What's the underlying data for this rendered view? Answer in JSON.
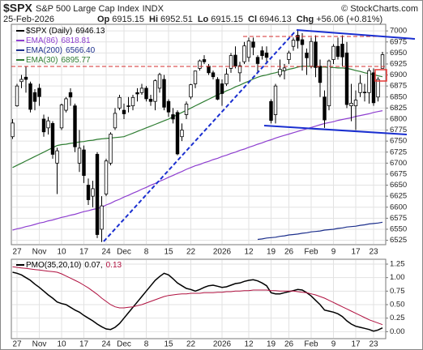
{
  "header": {
    "symbol": "$SPX",
    "name": "S&P 500 Large Cap Index",
    "exchange": "INDX",
    "date": "25-Feb-2026",
    "quote": [
      [
        "Op",
        "6915.15"
      ],
      [
        "Hi",
        "6952.51"
      ],
      [
        "Lo",
        "6915.15"
      ],
      [
        "Cl",
        "6946.13"
      ],
      [
        "Chg",
        "+56.06 (+0.81%)"
      ]
    ],
    "credit": "© StockCharts.com"
  },
  "chart_data": [
    {
      "type": "candlestick",
      "name": "$SPX (Daily)",
      "last": "6946.13",
      "color": "#000000",
      "grid": true,
      "categories": [
        null,
        "27",
        null,
        null,
        null,
        null,
        "Nov",
        null,
        null,
        null,
        null,
        "10",
        null,
        null,
        null,
        null,
        "17",
        null,
        null,
        null,
        null,
        "24",
        null,
        null,
        null,
        "Dec",
        null,
        null,
        null,
        null,
        "8",
        null,
        null,
        null,
        null,
        "15",
        null,
        null,
        null,
        null,
        "22",
        null,
        null,
        null,
        null,
        null,
        null,
        "2026",
        null,
        null,
        null,
        null,
        null,
        "12",
        null,
        null,
        null,
        null,
        "19",
        null,
        null,
        null,
        "26",
        null,
        null,
        null,
        null,
        "Feb",
        null,
        null,
        null,
        null,
        "9",
        null,
        null,
        null,
        null,
        "17",
        null,
        null,
        null,
        "23",
        null,
        null
      ],
      "open": [
        6760,
        6830,
        6885,
        6895,
        6880,
        6860,
        6870,
        6800,
        6780,
        6790,
        6700,
        6780,
        6820,
        6860,
        6830,
        6700,
        6730,
        6650,
        6625,
        6720,
        6550,
        6630,
        6700,
        6780,
        6825,
        6820,
        6830,
        6830,
        6860,
        6860,
        6870,
        6845,
        6840,
        6870,
        6890,
        6840,
        6810,
        6815,
        6760,
        6810,
        6850,
        6880,
        6915,
        6935,
        6920,
        6905,
        6890,
        6880,
        6880,
        6915,
        6945,
        6905,
        6930,
        6940,
        6975,
        6940,
        6955,
        6950,
        6840,
        6810,
        6900,
        6910,
        6935,
        6965,
        6990,
        6980,
        6950,
        6920,
        6975,
        6920,
        6850,
        6830,
        6935,
        6965,
        6970,
        6950,
        6830,
        6830,
        6860,
        6860,
        6860,
        6905,
        6850,
        6915.15
      ],
      "high": [
        6800,
        6880,
        6900,
        6920,
        6885,
        6868,
        6880,
        6810,
        6805,
        6795,
        6735,
        6835,
        6850,
        6870,
        6835,
        6775,
        6740,
        6665,
        6660,
        6725,
        6625,
        6710,
        6770,
        6825,
        6855,
        6835,
        6850,
        6855,
        6870,
        6880,
        6875,
        6855,
        6890,
        6905,
        6900,
        6845,
        6825,
        6820,
        6790,
        6840,
        6880,
        6910,
        6935,
        6945,
        6925,
        6910,
        6895,
        6890,
        6915,
        6950,
        6965,
        6930,
        6975,
        6985,
        6985,
        6945,
        6965,
        6965,
        6845,
        6880,
        6935,
        6925,
        6955,
        6985,
        7002,
        6995,
        6960,
        6985,
        6990,
        6935,
        6865,
        6935,
        6970,
        6985,
        6990,
        6975,
        6880,
        6865,
        6900,
        6880,
        6915,
        6915,
        6895,
        6952.51
      ],
      "low": [
        6755,
        6828,
        6870,
        6860,
        6815,
        6820,
        6830,
        6760,
        6765,
        6710,
        6630,
        6775,
        6815,
        6830,
        6725,
        6680,
        6655,
        6605,
        6600,
        6530,
        6521,
        6625,
        6695,
        6775,
        6820,
        6800,
        6815,
        6820,
        6840,
        6855,
        6840,
        6830,
        6820,
        6860,
        6820,
        6805,
        6790,
        6718,
        6750,
        6800,
        6845,
        6870,
        6910,
        6925,
        6900,
        6890,
        6843,
        6830,
        6875,
        6905,
        6915,
        6885,
        6925,
        6930,
        6945,
        6905,
        6935,
        6925,
        6790,
        6790,
        6895,
        6890,
        6925,
        6955,
        6960,
        6910,
        6900,
        6915,
        6895,
        6850,
        6780,
        6820,
        6925,
        6935,
        6920,
        6825,
        6795,
        6775,
        6850,
        6840,
        6835,
        6830,
        6840,
        6915.15
      ],
      "close": [
        6791,
        6875,
        6890,
        6890,
        6822,
        6840,
        6851,
        6771,
        6796,
        6720,
        6728,
        6832,
        6846,
        6850,
        6737,
        6734,
        6672,
        6617,
        6642,
        6538,
        6603,
        6705,
        6766,
        6813,
        6849,
        6812,
        6829,
        6849,
        6857,
        6870,
        6846,
        6840,
        6887,
        6901,
        6827,
        6816,
        6800,
        6721,
        6775,
        6834,
        6878,
        6909,
        6932,
        6930,
        6905,
        6896,
        6845,
        6858,
        6902,
        6944,
        6920,
        6921,
        6966,
        6977,
        6963,
        6926,
        6944,
        6940,
        6797,
        6875,
        6913,
        6916,
        6950,
        6979,
        6978,
        6969,
        6939,
        6976,
        6917,
        6883,
        6798,
        6932,
        6965,
        6942,
        6941,
        6833,
        6836,
        6843,
        6881,
        6861,
        6910,
        6837,
        6890,
        6946.13
      ],
      "overlays": [
        {
          "name": "EMA(86)",
          "last": "6818.81",
          "color": "#8e3fd0",
          "values": [
            6548,
            6551,
            6553,
            6556,
            6558,
            6561,
            6564,
            6566,
            6569,
            6571,
            6574,
            6577,
            6579,
            6582,
            6584,
            6587,
            6590,
            6592,
            6595,
            6597,
            6600,
            6605,
            6609,
            6614,
            6618,
            6623,
            6627,
            6632,
            6636,
            6641,
            6645,
            6650,
            6654,
            6659,
            6663,
            6668,
            6672,
            6677,
            6681,
            6686,
            6690,
            6694,
            6697,
            6701,
            6704,
            6708,
            6711,
            6715,
            6718,
            6722,
            6725,
            6729,
            6732,
            6736,
            6739,
            6743,
            6746,
            6750,
            6753,
            6757,
            6760,
            6763,
            6766,
            6769,
            6772,
            6775,
            6778,
            6781,
            6784,
            6787,
            6790,
            6792,
            6794,
            6797,
            6799,
            6801,
            6803,
            6806,
            6808,
            6810,
            6812,
            6815,
            6817,
            6819
          ]
        },
        {
          "name": "EMA(200)",
          "last": "6566.40",
          "color": "#1c2f8c",
          "values": [
            null,
            null,
            null,
            null,
            null,
            null,
            null,
            null,
            null,
            null,
            null,
            null,
            null,
            null,
            null,
            null,
            null,
            null,
            null,
            null,
            null,
            null,
            null,
            null,
            null,
            null,
            null,
            null,
            null,
            null,
            null,
            null,
            null,
            null,
            null,
            null,
            null,
            null,
            null,
            null,
            null,
            null,
            null,
            null,
            null,
            null,
            null,
            null,
            null,
            null,
            null,
            null,
            null,
            null,
            null,
            6527,
            6528,
            6530,
            6531,
            6532,
            6534,
            6535,
            6537,
            6538,
            6539,
            6541,
            6542,
            6544,
            6545,
            6546,
            6548,
            6549,
            6550,
            6552,
            6553,
            6555,
            6556,
            6557,
            6559,
            6560,
            6562,
            6563,
            6564,
            6566
          ]
        },
        {
          "name": "EMA(30)",
          "last": "6895.77",
          "color": "#2e7d32",
          "values": [
            6690,
            6695,
            6700,
            6705,
            6710,
            6715,
            6720,
            6725,
            6730,
            6735,
            6740,
            6742,
            6743,
            6745,
            6746,
            6748,
            6749,
            6751,
            6752,
            6754,
            6755,
            6756,
            6757,
            6758,
            6759,
            6760,
            6764,
            6768,
            6772,
            6776,
            6780,
            6784,
            6788,
            6792,
            6796,
            6800,
            6805,
            6810,
            6815,
            6820,
            6825,
            6830,
            6835,
            6840,
            6845,
            6850,
            6855,
            6859,
            6864,
            6868,
            6873,
            6877,
            6882,
            6886,
            6891,
            6895,
            6898,
            6900,
            6903,
            6905,
            6908,
            6910,
            6913,
            6915,
            6918,
            6920,
            6920,
            6919,
            6919,
            6918,
            6918,
            6917,
            6917,
            6916,
            6916,
            6915,
            6913,
            6910,
            6908,
            6905,
            6903,
            6901,
            6898,
            6896
          ]
        }
      ],
      "ylim": [
        6515,
        7015
      ],
      "yticks": [
        6525,
        6550,
        6575,
        6600,
        6625,
        6650,
        6675,
        6700,
        6725,
        6750,
        6775,
        6800,
        6825,
        6850,
        6875,
        6900,
        6925,
        6950,
        6975,
        7000
      ]
    },
    {
      "type": "line",
      "grid": true,
      "series": [
        {
          "name": "PMO(35,20,10)",
          "last": "0.07,",
          "color": "#000000",
          "values": [
            1.1,
            1.08,
            1.05,
            1.0,
            0.95,
            0.88,
            0.82,
            0.75,
            0.68,
            0.62,
            0.55,
            0.52,
            0.5,
            0.45,
            0.4,
            0.36,
            0.3,
            0.25,
            0.2,
            0.14,
            0.09,
            0.05,
            0.04,
            0.08,
            0.15,
            0.25,
            0.35,
            0.45,
            0.55,
            0.65,
            0.75,
            0.85,
            0.95,
            1.02,
            1.08,
            1.05,
            0.98,
            0.9,
            0.85,
            0.8,
            0.78,
            0.75,
            0.78,
            0.82,
            0.85,
            0.86,
            0.84,
            0.82,
            0.83,
            0.86,
            0.89,
            0.9,
            0.93,
            0.95,
            0.96,
            0.94,
            0.9,
            0.85,
            0.72,
            0.7,
            0.7,
            0.72,
            0.74,
            0.76,
            0.78,
            0.77,
            0.72,
            0.66,
            0.58,
            0.5,
            0.4,
            0.38,
            0.36,
            0.33,
            0.28,
            0.2,
            0.14,
            0.1,
            0.08,
            0.06,
            0.04,
            0.01,
            0.03,
            0.07
          ]
        },
        {
          "last": "0.13",
          "color": "#b0103f",
          "values": [
            1.2,
            1.19,
            1.18,
            1.17,
            1.16,
            1.15,
            1.14,
            1.13,
            1.12,
            1.11,
            1.1,
            1.07,
            1.03,
            0.99,
            0.95,
            0.91,
            0.86,
            0.81,
            0.75,
            0.69,
            0.62,
            0.56,
            0.5,
            0.46,
            0.44,
            0.44,
            0.45,
            0.46,
            0.48,
            0.5,
            0.53,
            0.56,
            0.59,
            0.62,
            0.65,
            0.67,
            0.68,
            0.69,
            0.7,
            0.7,
            0.71,
            0.71,
            0.71,
            0.72,
            0.72,
            0.72,
            0.73,
            0.73,
            0.74,
            0.74,
            0.75,
            0.75,
            0.76,
            0.76,
            0.77,
            0.77,
            0.77,
            0.77,
            0.76,
            0.76,
            0.75,
            0.75,
            0.75,
            0.75,
            0.74,
            0.73,
            0.72,
            0.7,
            0.68,
            0.65,
            0.62,
            0.58,
            0.54,
            0.5,
            0.46,
            0.42,
            0.38,
            0.34,
            0.3,
            0.26,
            0.22,
            0.19,
            0.16,
            0.13
          ]
        }
      ],
      "ylim": [
        -0.13,
        1.34
      ],
      "yticks": [
        {
          "value": 0,
          "label": "0.00"
        },
        0.25,
        {
          "value": 0.5,
          "label": "0.50"
        },
        0.75,
        {
          "value": 1,
          "label": "1.00"
        },
        1.25
      ]
    }
  ]
}
